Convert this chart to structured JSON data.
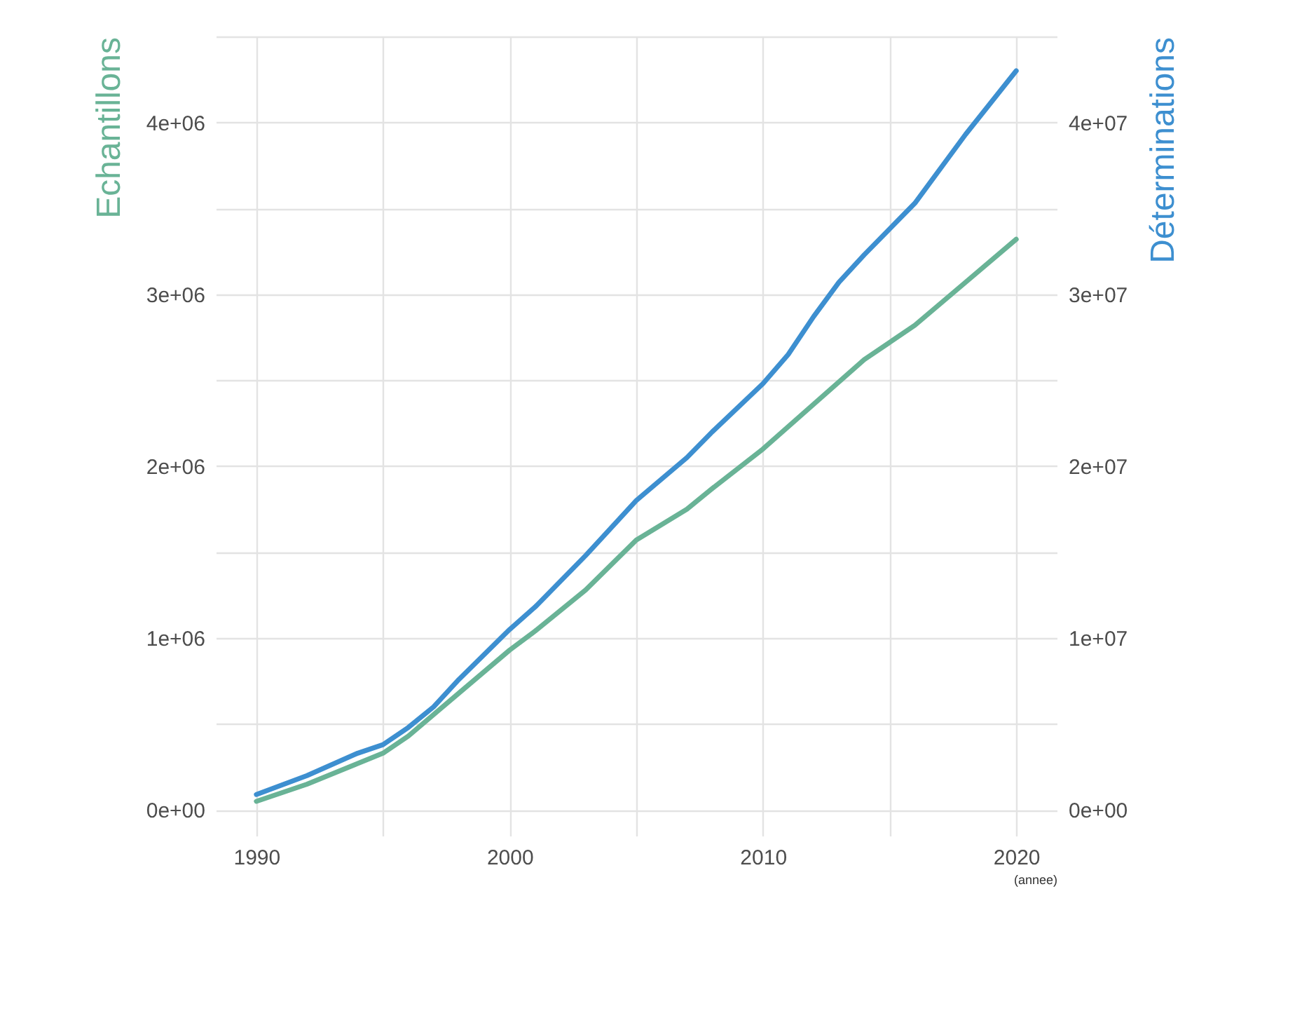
{
  "chart_data": {
    "type": "line",
    "xlabel": "(annee)",
    "ylabel": "Echantillons",
    "y2label": "Déterminations",
    "xlim": [
      1988.4,
      2021.6
    ],
    "xticks": [
      {
        "value": 1990,
        "label": "1990"
      },
      {
        "value": 1995,
        "label": null
      },
      {
        "value": 2000,
        "label": "2000"
      },
      {
        "value": 2005,
        "label": null
      },
      {
        "value": 2010,
        "label": "2010"
      },
      {
        "value": 2015,
        "label": null
      },
      {
        "value": 2020,
        "label": "2020"
      }
    ],
    "ylim": [
      -150000,
      4500000
    ],
    "yticks": [
      {
        "value": 0,
        "label": "0e+00"
      },
      {
        "value": 500000,
        "label": null
      },
      {
        "value": 1000000,
        "label": "1e+06"
      },
      {
        "value": 1500000,
        "label": null
      },
      {
        "value": 2000000,
        "label": "2e+06"
      },
      {
        "value": 2500000,
        "label": null
      },
      {
        "value": 3000000,
        "label": "3e+06"
      },
      {
        "value": 3500000,
        "label": null
      },
      {
        "value": 4000000,
        "label": "4e+06"
      },
      {
        "value": 4500000,
        "label": null
      }
    ],
    "y2lim": [
      -1500000,
      45000000
    ],
    "y2ticks": [
      {
        "value": 0,
        "label": "0e+00"
      },
      {
        "value": 10000000,
        "label": "1e+07"
      },
      {
        "value": 20000000,
        "label": "2e+07"
      },
      {
        "value": 30000000,
        "label": "3e+07"
      },
      {
        "value": 40000000,
        "label": "4e+07"
      }
    ],
    "grid": true,
    "line_style": "solid",
    "marker": "none",
    "series": [
      {
        "color": "#69b396",
        "x": [
          1990,
          1992,
          1994,
          1995,
          1996,
          1998,
          2000,
          2001,
          2003,
          2005,
          2007,
          2008,
          2010,
          2012,
          2014,
          2016,
          2018,
          2020
        ],
        "values": [
          50000,
          150000,
          270000,
          330000,
          430000,
          680000,
          930000,
          1040000,
          1280000,
          1570000,
          1750000,
          1870000,
          2100000,
          2360000,
          2620000,
          2820000,
          3070000,
          3320000
        ]
      },
      {
        "color": "#3d8fd0",
        "axis": "y2",
        "x": [
          1990,
          1992,
          1994,
          1995,
          1996,
          1997,
          1998,
          2000,
          2001,
          2003,
          2005,
          2007,
          2008,
          2010,
          2011,
          2012,
          2013,
          2014,
          2016,
          2018,
          2020
        ],
        "values": [
          900000,
          2000000,
          3300000,
          3800000,
          4800000,
          6000000,
          7600000,
          10500000,
          11800000,
          14800000,
          18000000,
          20500000,
          22000000,
          24800000,
          26500000,
          28700000,
          30700000,
          32300000,
          35300000,
          39300000,
          43000000
        ]
      }
    ]
  }
}
